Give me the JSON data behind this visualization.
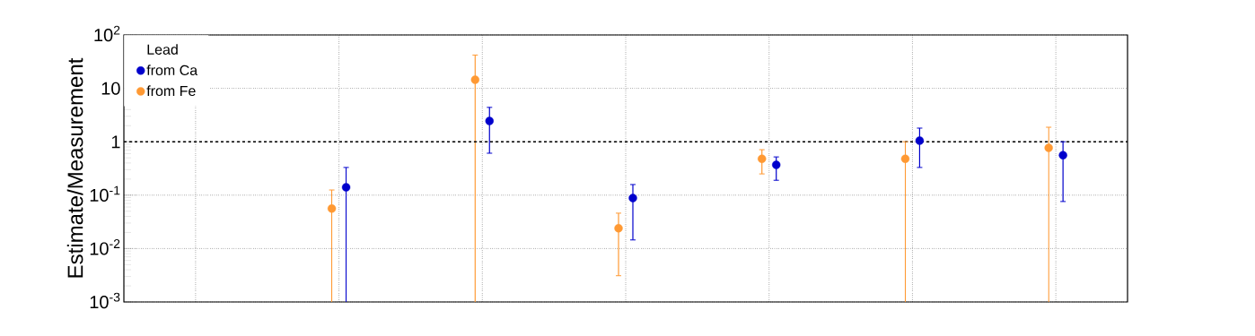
{
  "chart_data": {
    "type": "scatter",
    "ylabel": "Estimate/Measurement",
    "legend_title": "Lead",
    "categories": [
      null,
      null,
      null,
      null,
      null,
      null,
      null
    ],
    "series": [
      {
        "name": "from Ca",
        "color": "#0000cc",
        "values": [
          null,
          0.14,
          2.45,
          0.088,
          0.37,
          1.05,
          0.56
        ],
        "errors": [
          null,
          [
            0.001,
            0.33
          ],
          [
            0.61,
            4.4
          ],
          [
            0.0145,
            0.158
          ],
          [
            0.19,
            0.52
          ],
          [
            0.33,
            1.8
          ],
          [
            0.076,
            1.0
          ]
        ]
      },
      {
        "name": "from Fe",
        "color": "#ff9933",
        "values": [
          null,
          0.056,
          14.5,
          0.024,
          0.48,
          0.48,
          0.77
        ],
        "errors": [
          null,
          [
            0.001,
            0.125
          ],
          [
            0.001,
            42
          ],
          [
            0.0031,
            0.046
          ],
          [
            0.25,
            0.71
          ],
          [
            0.001,
            1.0
          ],
          [
            0.001,
            1.87
          ]
        ]
      }
    ],
    "log": "y",
    "ylim": [
      0.001,
      100
    ],
    "yticks": [
      {
        "value": 0.001,
        "label": "10$^{-3}$"
      },
      {
        "value": 0.01,
        "label": "10$^{-2}$"
      },
      {
        "value": 0.1,
        "label": "10$^{-1}$"
      },
      1,
      10,
      {
        "value": 100,
        "label": "10$^{2}$"
      }
    ],
    "ref_lines": [
      {
        "axis": "y",
        "value": 1,
        "line_style": "dashed",
        "color": "#000000"
      }
    ],
    "grid": true,
    "legend": "top left",
    "marker": "circle",
    "tick_labels": "y"
  }
}
